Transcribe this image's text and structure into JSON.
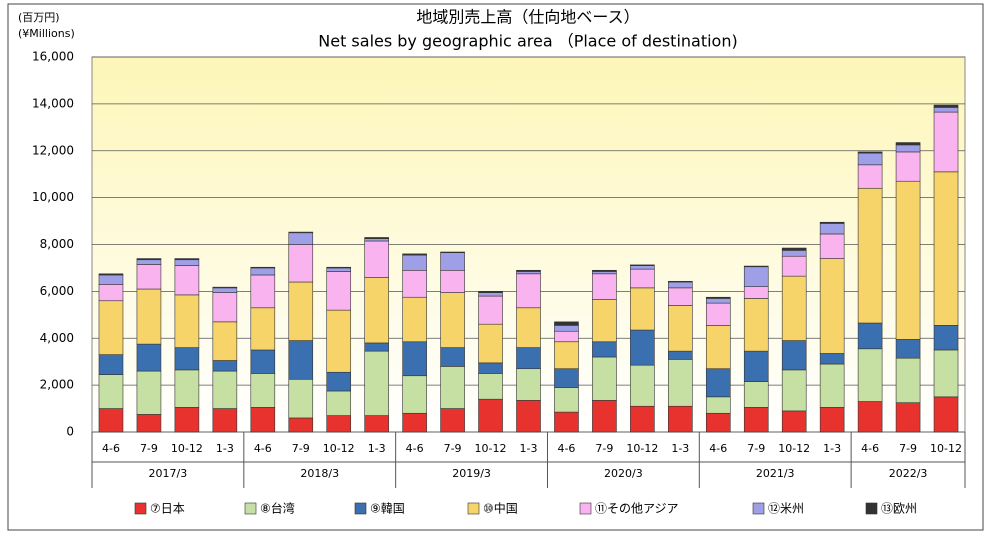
{
  "chart_data": {
    "type": "stacked_bar",
    "title": "地域別売上高（仕向地ベース）",
    "subtitle": "Net sales by geographic area （Place of destination)",
    "unit_label": "(百万円)",
    "unit_label_en": "(¥Millions)",
    "categories": [
      "4-6",
      "7-9",
      "10-12",
      "1-3",
      "4-6",
      "7-9",
      "10-12",
      "1-3",
      "4-6",
      "7-9",
      "10-12",
      "1-3",
      "4-6",
      "7-9",
      "10-12",
      "1-3",
      "4-6",
      "7-9",
      "10-12",
      "1-3",
      "4-6",
      "7-9",
      "10-12"
    ],
    "groups": [
      "2017/3",
      "2018/3",
      "2019/3",
      "2020/3",
      "2021/3",
      "2022/3"
    ],
    "ylim": [
      0,
      16000
    ],
    "yticks": [
      0,
      {
        "value": 2000,
        "label": "2,000"
      },
      {
        "value": 4000,
        "label": "4,000"
      },
      {
        "value": 6000,
        "label": "6,000"
      },
      {
        "value": 8000,
        "label": "8,000"
      },
      {
        "value": 10000,
        "label": "10,000"
      },
      {
        "value": 12000,
        "label": "12,000"
      },
      {
        "value": 14000,
        "label": "14,000"
      },
      {
        "value": 16000,
        "label": "16,000"
      }
    ],
    "grid": true,
    "legend": "bottom",
    "series": [
      {
        "name": "⑦日本",
        "color": "#e8322d",
        "values": [
          1000,
          750,
          1050,
          1000,
          1050,
          600,
          700,
          700,
          800,
          1000,
          1400,
          1350,
          850,
          1350,
          1100,
          1100,
          800,
          1050,
          900,
          1050,
          1300,
          1250,
          1500
        ]
      },
      {
        "name": "⑧台湾",
        "color": "#c6e0a4",
        "values": [
          1450,
          1850,
          1600,
          1600,
          1450,
          1650,
          1050,
          2750,
          1600,
          1800,
          1100,
          1350,
          1050,
          1850,
          1750,
          2000,
          700,
          1100,
          1750,
          1850,
          2250,
          1900,
          2000
        ]
      },
      {
        "name": "⑨韓国",
        "color": "#3a6fb0",
        "values": [
          850,
          1150,
          950,
          450,
          1000,
          1650,
          800,
          350,
          1450,
          800,
          450,
          900,
          800,
          650,
          1500,
          350,
          1200,
          1300,
          1250,
          450,
          1100,
          800,
          1050
        ]
      },
      {
        "name": "⑩中国",
        "color": "#f7d46a",
        "values": [
          2300,
          2350,
          2250,
          1650,
          1800,
          2500,
          2650,
          2800,
          1900,
          2350,
          1650,
          1700,
          1150,
          1800,
          1800,
          1950,
          1850,
          2250,
          2750,
          4050,
          5750,
          6750,
          6550
        ]
      },
      {
        "name": "⑪その他アジア",
        "color": "#f9b3ef",
        "values": [
          700,
          1050,
          1250,
          1250,
          1400,
          1600,
          1650,
          1550,
          1150,
          950,
          1200,
          1450,
          450,
          1100,
          800,
          750,
          950,
          500,
          850,
          1050,
          1000,
          1250,
          2550
        ]
      },
      {
        "name": "⑫米州",
        "color": "#9f9fe8",
        "values": [
          400,
          200,
          250,
          200,
          300,
          500,
          150,
          100,
          650,
          750,
          150,
          100,
          250,
          100,
          150,
          250,
          200,
          850,
          250,
          450,
          500,
          300,
          200
        ]
      },
      {
        "name": "⑬欧州",
        "color": "#333333",
        "values": [
          50,
          50,
          50,
          30,
          30,
          30,
          30,
          50,
          50,
          30,
          50,
          50,
          150,
          50,
          30,
          30,
          50,
          30,
          100,
          50,
          50,
          100,
          100
        ]
      }
    ]
  }
}
